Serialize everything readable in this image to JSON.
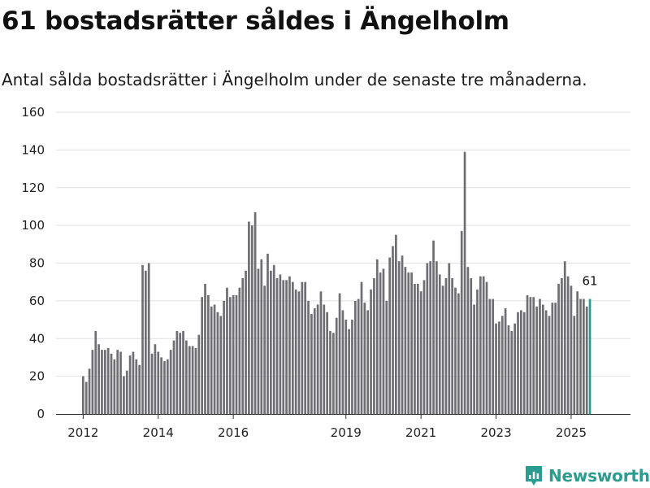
{
  "header": {
    "title": "61 bostadsrätter såldes i Ängelholm",
    "subtitle": "Antal sålda bostadsrätter i Ängelholm under de senaste tre månaderna."
  },
  "brand": {
    "name": "Newsworthy",
    "icon": "newsworthy-logo-icon",
    "color": "#2a9d8f"
  },
  "colors": {
    "bar": "#6e6e73",
    "highlight": "#1aa394"
  },
  "chart_data": {
    "type": "bar",
    "title": "",
    "xlabel": "",
    "ylabel": "",
    "ylim": [
      0,
      160
    ],
    "yticks": [
      0,
      20,
      40,
      60,
      80,
      100,
      120,
      140,
      160
    ],
    "grid": true,
    "legend": "none",
    "start_month": "2012-01",
    "xtick_labels": [
      "2012",
      "2014",
      "2016",
      "2019",
      "2021",
      "2023",
      "2025"
    ],
    "values": [
      20,
      17,
      24,
      34,
      44,
      37,
      34,
      34,
      35,
      32,
      29,
      34,
      33,
      20,
      23,
      31,
      33,
      29,
      26,
      79,
      76,
      80,
      32,
      37,
      33,
      30,
      28,
      29,
      34,
      39,
      44,
      43,
      44,
      39,
      36,
      36,
      35,
      42,
      62,
      69,
      63,
      57,
      58,
      54,
      52,
      60,
      67,
      62,
      63,
      63,
      67,
      72,
      76,
      102,
      100,
      107,
      77,
      82,
      68,
      85,
      76,
      79,
      72,
      74,
      71,
      71,
      73,
      70,
      66,
      65,
      70,
      70,
      60,
      53,
      56,
      58,
      65,
      58,
      54,
      44,
      43,
      51,
      64,
      55,
      50,
      45,
      50,
      60,
      61,
      70,
      59,
      55,
      66,
      72,
      82,
      75,
      77,
      60,
      83,
      89,
      95,
      81,
      84,
      78,
      75,
      75,
      69,
      69,
      65,
      71,
      80,
      81,
      92,
      81,
      74,
      68,
      72,
      80,
      72,
      67,
      64,
      97,
      139,
      78,
      72,
      58,
      66,
      73,
      73,
      70,
      61,
      61,
      48,
      49,
      52,
      56,
      47,
      44,
      48,
      54,
      55,
      54,
      63,
      62,
      62,
      57,
      61,
      58,
      55,
      52,
      59,
      59,
      69,
      72,
      81,
      73,
      68,
      52,
      65,
      61,
      61,
      57,
      61
    ],
    "last_value_label": "61"
  }
}
